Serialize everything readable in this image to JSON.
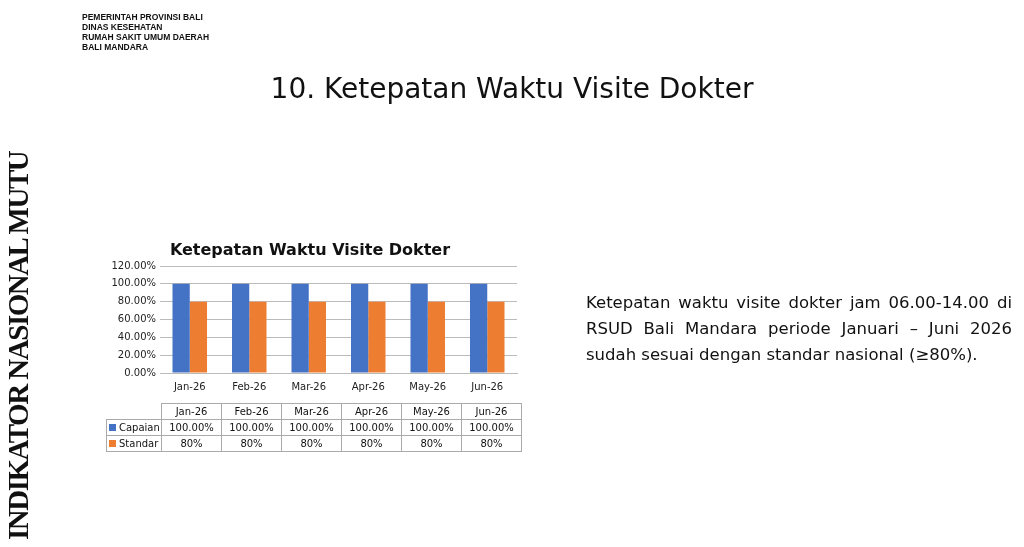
{
  "chart_data": {
    "type": "bar",
    "title": "10. Ketepatan Waktu Visite Dokter",
    "subtitle": "Ketepatan Waktu Visite Dokter",
    "annotations": [
      "PEMERINTAH PROVINSI BALI",
      "DINAS KESEHATAN",
      "RUMAH SAKIT UMUM DAERAH",
      "BALI MANDARA",
      "INDIKATOR NASIONAL MUTU",
      "Ketepatan waktu visite dokter jam 06.00-14.00 di RSUD Bali Mandara periode Januari – Juni 2026 sudah sesuai dengan standar nasional (≥80%)."
    ],
    "categories": [
      "Jan-26",
      "Feb-26",
      "Mar-26",
      "Apr-26",
      "May-26",
      "Jun-26"
    ],
    "series": [
      {
        "name": "Capaian",
        "color": "#4472c4",
        "values": [
          100,
          100,
          100,
          100,
          100,
          100
        ],
        "value_labels": [
          "100.00%",
          "100.00%",
          "100.00%",
          "100.00%",
          "100.00%",
          "100.00%"
        ]
      },
      {
        "name": "Standar",
        "color": "#ed7d31",
        "values": [
          80,
          80,
          80,
          80,
          80,
          80
        ],
        "value_labels": [
          "80%",
          "80%",
          "80%",
          "80%",
          "80%",
          "80%"
        ]
      }
    ],
    "ylim": [
      0,
      120
    ],
    "yticks": [
      {
        "value": 0,
        "label": "0.00%"
      },
      {
        "value": 20,
        "label": "20.00%"
      },
      {
        "value": 40,
        "label": "40.00%"
      },
      {
        "value": 60,
        "label": "60.00%"
      },
      {
        "value": 80,
        "label": "80.00%"
      },
      {
        "value": 100,
        "label": "100.00%"
      },
      {
        "value": 120,
        "label": "120.00%"
      }
    ],
    "grid": "y",
    "legend": "bottom"
  }
}
